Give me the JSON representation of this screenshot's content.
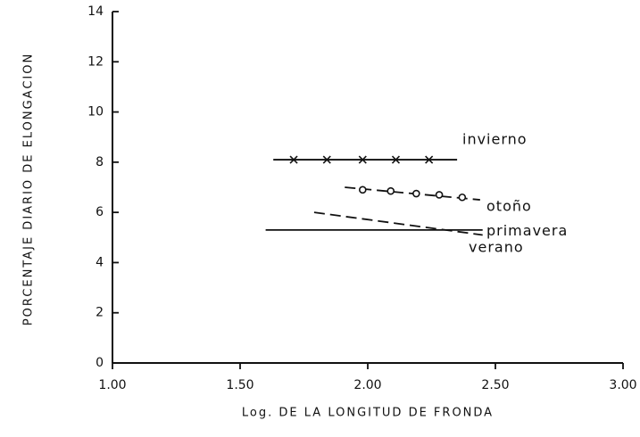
{
  "chart_data": {
    "type": "line",
    "xlabel": "Log. DE LA LONGITUD DE FRONDA",
    "ylabel": "PORCENTAJE DIARIO DE ELONGACION",
    "xlim": [
      1,
      3
    ],
    "xticks": [
      {
        "value": 1,
        "label": "1.00"
      },
      {
        "value": 1.5,
        "label": "1.50"
      },
      {
        "value": 2,
        "label": "2.00"
      },
      {
        "value": 2.5,
        "label": "2.50"
      },
      {
        "value": 3,
        "label": "3.00"
      }
    ],
    "ylim": [
      0,
      14
    ],
    "yticks": [
      0,
      2,
      4,
      6,
      8,
      10,
      12,
      14
    ],
    "series": [
      {
        "name": "invierno",
        "color": "#111111",
        "marker": "x",
        "dash": false,
        "x": [
          1.71,
          1.84,
          1.98,
          2.11,
          2.24
        ],
        "values": [
          8.1,
          8.1,
          8.1,
          8.1,
          8.1
        ],
        "line": {
          "x": [
            1.63,
            2.35
          ],
          "values": [
            8.1,
            8.1
          ]
        }
      },
      {
        "name": "otoño",
        "color": "#111111",
        "marker": "o",
        "dash": true,
        "x": [
          1.98,
          2.09,
          2.19,
          2.28,
          2.37
        ],
        "values": [
          6.9,
          6.85,
          6.75,
          6.7,
          6.6
        ],
        "line": {
          "x": [
            1.91,
            2.44
          ],
          "values": [
            7.0,
            6.5
          ]
        }
      },
      {
        "name": "primavera",
        "color": "#111111",
        "marker": null,
        "dash": true,
        "x": [
          1.79,
          2.45
        ],
        "values": [
          6.0,
          5.1
        ]
      },
      {
        "name": "verano",
        "color": "#111111",
        "marker": null,
        "dash": false,
        "x": [
          1.6,
          2.45
        ],
        "values": [
          5.3,
          5.3
        ]
      }
    ]
  }
}
